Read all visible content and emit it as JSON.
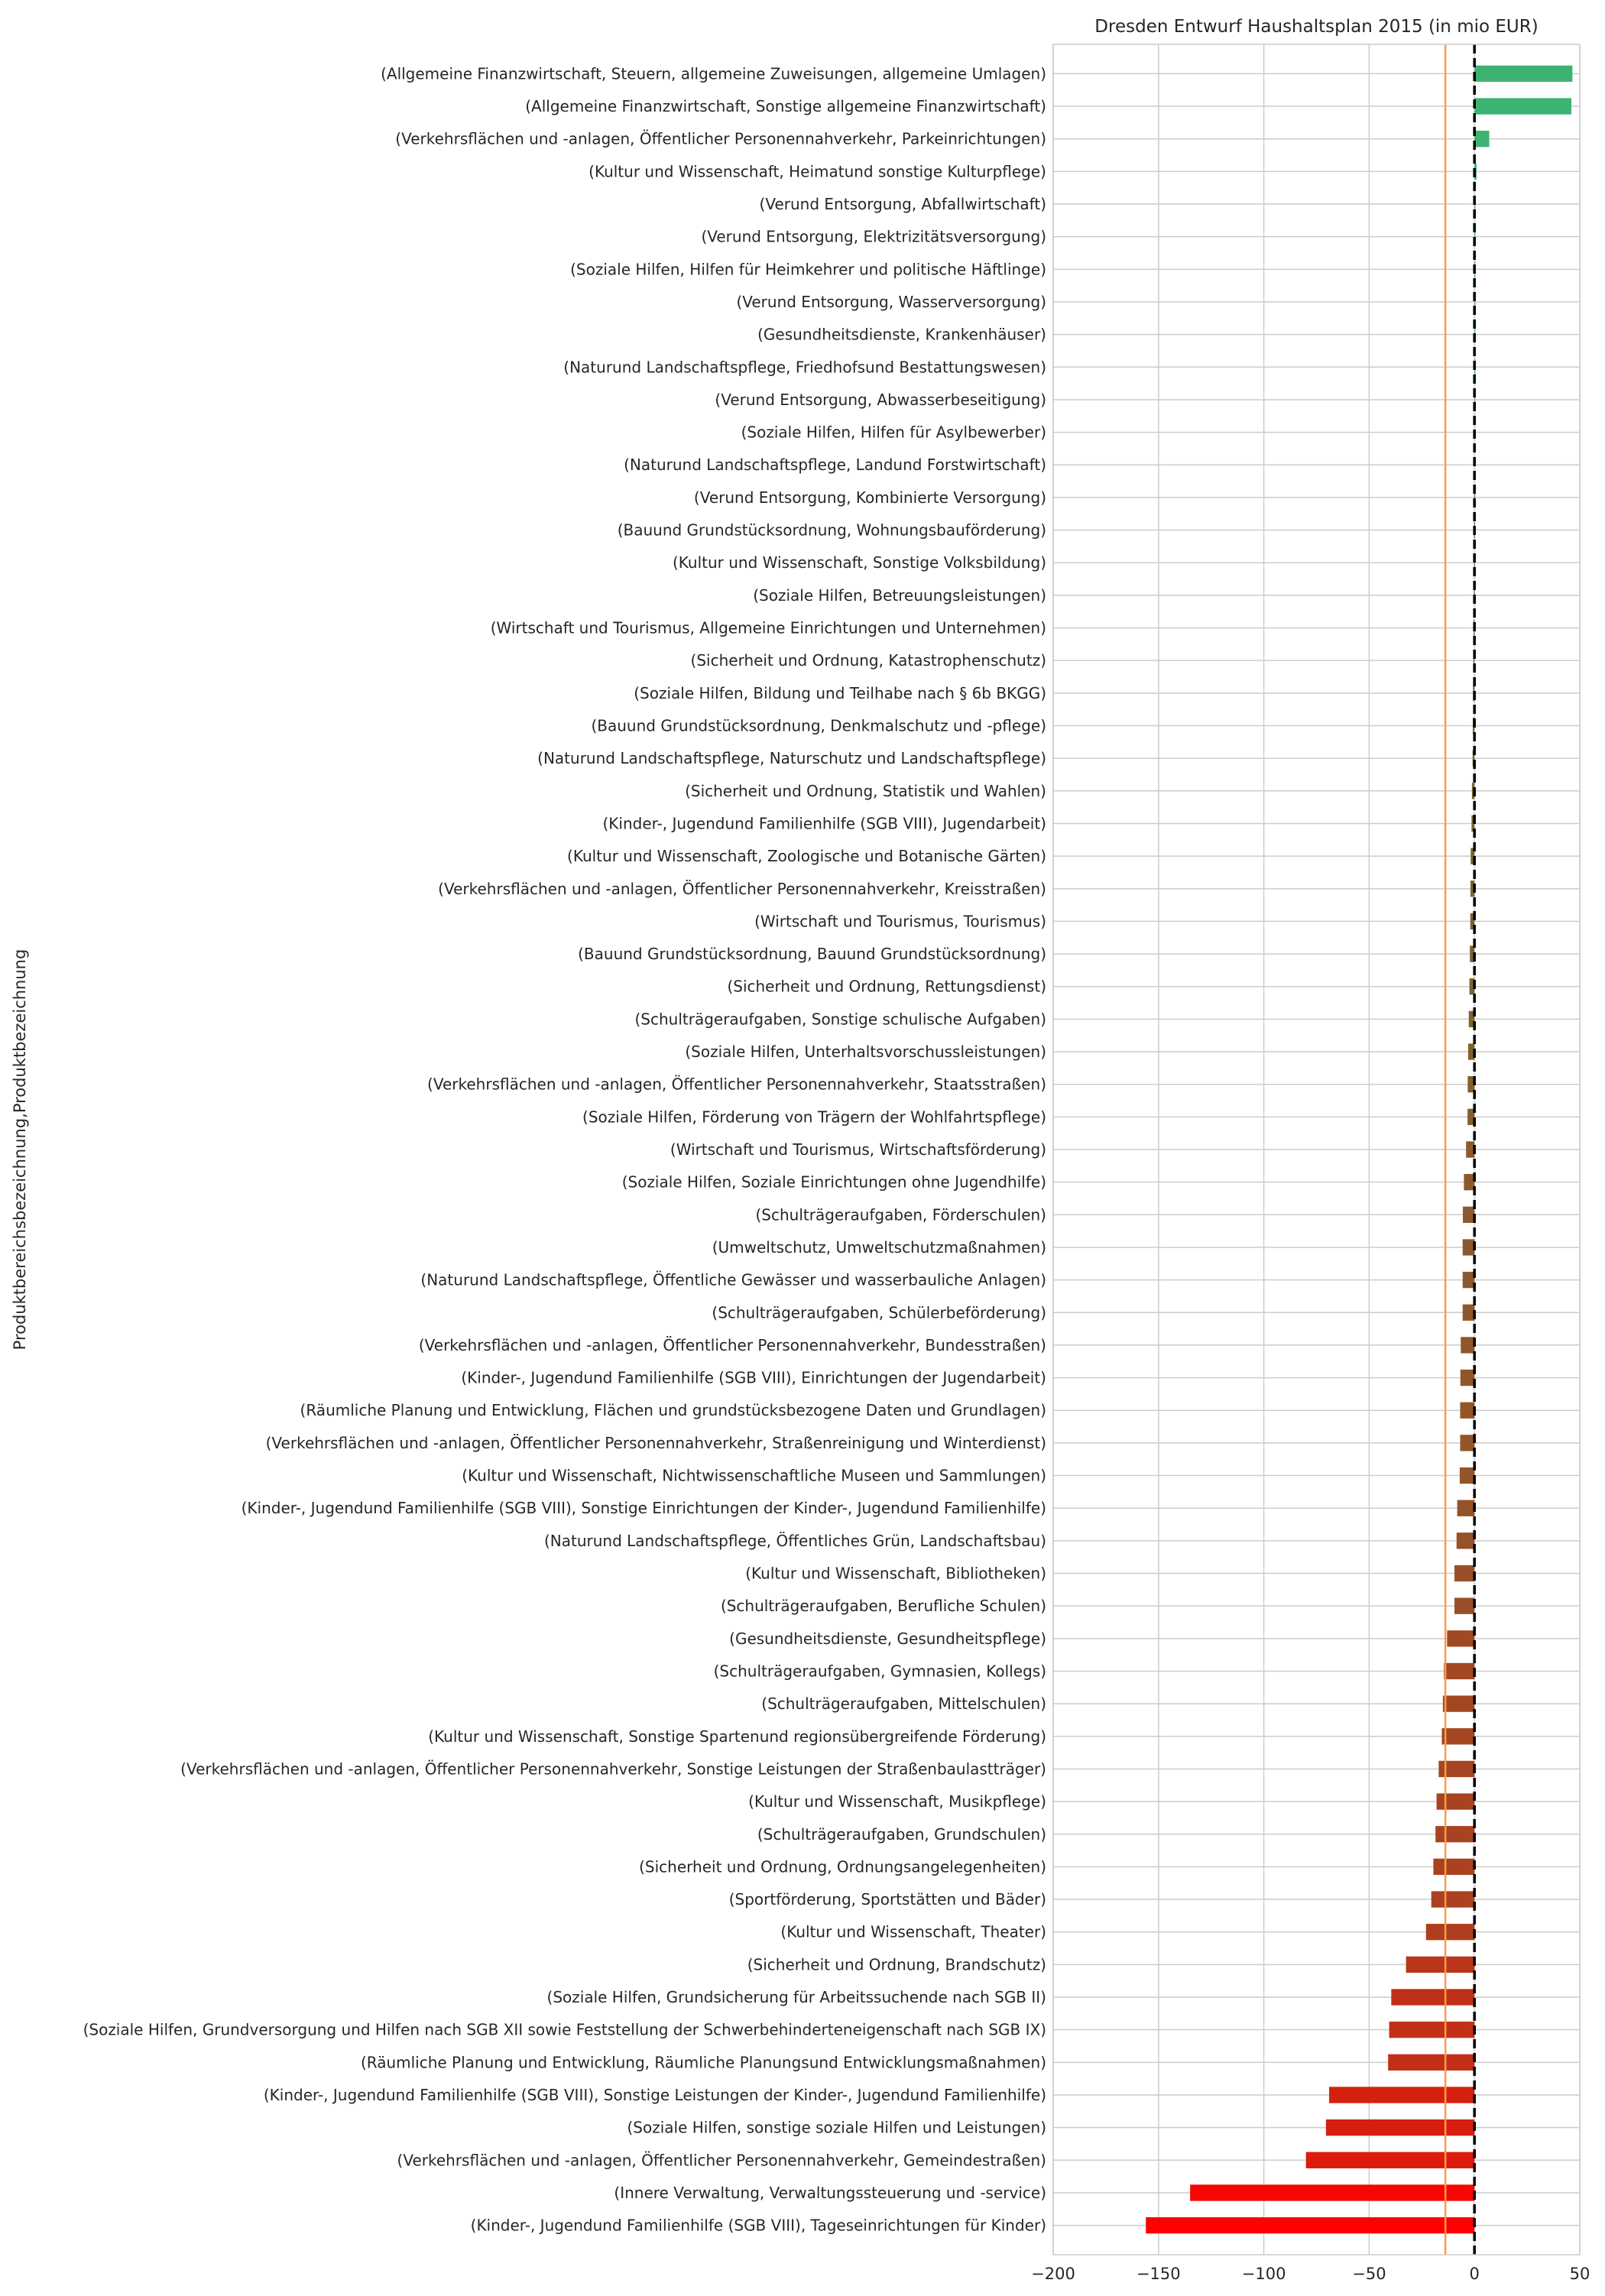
{
  "chart_data": {
    "type": "bar",
    "orientation": "horizontal",
    "title": "Dresden Entwurf Haushaltsplan 2015 (in mio EUR)",
    "xlabel": "",
    "ylabel": "Produktbereichsbezeichnung,Produktbezeichnung",
    "xlim": [
      -200,
      50
    ],
    "xticks": [
      -200,
      -150,
      -100,
      -50,
      0,
      50
    ],
    "xtick_labels": [
      "−200",
      "−150",
      "−100",
      "−50",
      "0",
      "50"
    ],
    "grid": true,
    "zero_line": {
      "x": 0,
      "style": "dashed",
      "color": "#000000"
    },
    "reference_line": {
      "x": -13.8,
      "color": "#ff9a4a"
    },
    "positive_color": "#3cb371",
    "negative_color": "#ff0000",
    "categories": [
      "(Allgemeine Finanzwirtschaft, Steuern, allgemeine Zuweisungen, allgemeine Umlagen)",
      "(Allgemeine Finanzwirtschaft, Sonstige allgemeine Finanzwirtschaft)",
      "(Verkehrsflächen und -anlagen, Öffentlicher Personennahverkehr, Parkeinrichtungen)",
      "(Kultur und Wissenschaft, Heimatund sonstige Kulturpflege)",
      "(Verund Entsorgung, Abfallwirtschaft)",
      "(Verund Entsorgung, Elektrizitätsversorgung)",
      "(Soziale Hilfen, Hilfen für Heimkehrer und politische Häftlinge)",
      "(Verund Entsorgung, Wasserversorgung)",
      "(Gesundheitsdienste, Krankenhäuser)",
      "(Naturund Landschaftspflege, Friedhofsund Bestattungswesen)",
      "(Verund Entsorgung, Abwasserbeseitigung)",
      "(Soziale Hilfen, Hilfen für Asylbewerber)",
      "(Naturund Landschaftspflege, Landund Forstwirtschaft)",
      "(Verund Entsorgung, Kombinierte Versorgung)",
      "(Bauund Grundstücksordnung, Wohnungsbauförderung)",
      "(Kultur und Wissenschaft, Sonstige Volksbildung)",
      "(Soziale Hilfen, Betreuungsleistungen)",
      "(Wirtschaft und Tourismus, Allgemeine Einrichtungen und Unternehmen)",
      "(Sicherheit und Ordnung, Katastrophenschutz)",
      "(Soziale Hilfen, Bildung und Teilhabe nach § 6b BKGG)",
      "(Bauund Grundstücksordnung, Denkmalschutz und -pflege)",
      "(Naturund Landschaftspflege, Naturschutz und Landschaftspflege)",
      "(Sicherheit und Ordnung, Statistik und Wahlen)",
      "(Kinder-, Jugendund Familienhilfe (SGB VIII), Jugendarbeit)",
      "(Kultur und Wissenschaft, Zoologische und Botanische Gärten)",
      "(Verkehrsflächen und -anlagen, Öffentlicher Personennahverkehr, Kreisstraßen)",
      "(Wirtschaft und Tourismus, Tourismus)",
      "(Bauund Grundstücksordnung, Bauund Grundstücksordnung)",
      "(Sicherheit und Ordnung, Rettungsdienst)",
      "(Schulträgeraufgaben, Sonstige schulische Aufgaben)",
      "(Soziale Hilfen, Unterhaltsvorschussleistungen)",
      "(Verkehrsflächen und -anlagen, Öffentlicher Personennahverkehr, Staatsstraßen)",
      "(Soziale Hilfen, Förderung von Trägern der Wohlfahrtspflege)",
      "(Wirtschaft und Tourismus, Wirtschaftsförderung)",
      "(Soziale Hilfen, Soziale Einrichtungen ohne Jugendhilfe)",
      "(Schulträgeraufgaben, Förderschulen)",
      "(Umweltschutz, Umweltschutzmaßnahmen)",
      "(Naturund Landschaftspflege, Öffentliche Gewässer und wasserbauliche Anlagen)",
      "(Schulträgeraufgaben, Schülerbeförderung)",
      "(Verkehrsflächen und -anlagen, Öffentlicher Personennahverkehr, Bundesstraßen)",
      "(Kinder-, Jugendund Familienhilfe (SGB VIII), Einrichtungen der Jugendarbeit)",
      "(Räumliche Planung und Entwicklung, Flächen und grundstücksbezogene Daten und Grundlagen)",
      "(Verkehrsflächen und -anlagen, Öffentlicher Personennahverkehr, Straßenreinigung und Winterdienst)",
      "(Kultur und Wissenschaft, Nichtwissenschaftliche Museen und Sammlungen)",
      "(Kinder-, Jugendund Familienhilfe (SGB VIII), Sonstige Einrichtungen der Kinder-, Jugendund Familienhilfe)",
      "(Naturund Landschaftspflege, Öffentliches Grün, Landschaftsbau)",
      "(Kultur und Wissenschaft, Bibliotheken)",
      "(Schulträgeraufgaben, Berufliche Schulen)",
      "(Gesundheitsdienste, Gesundheitspflege)",
      "(Schulträgeraufgaben, Gymnasien, Kollegs)",
      "(Schulträgeraufgaben, Mittelschulen)",
      "(Kultur und Wissenschaft, Sonstige Spartenund regionsübergreifende Förderung)",
      "(Verkehrsflächen und -anlagen, Öffentlicher Personennahverkehr, Sonstige Leistungen der Straßenbaulastträger)",
      "(Kultur und Wissenschaft, Musikpflege)",
      "(Schulträgeraufgaben, Grundschulen)",
      "(Sicherheit und Ordnung, Ordnungsangelegenheiten)",
      "(Sportförderung, Sportstätten und Bäder)",
      "(Kultur und Wissenschaft, Theater)",
      "(Sicherheit und Ordnung, Brandschutz)",
      "(Soziale Hilfen, Grundsicherung für Arbeitssuchende nach SGB II)",
      "(Soziale Hilfen, Grundversorgung und Hilfen nach SGB XII sowie Feststellung der Schwerbehinderteneigenschaft nach SGB IX)",
      "(Räumliche Planung und Entwicklung, Räumliche Planungsund Entwicklungsmaßnahmen)",
      "(Kinder-, Jugendund Familienhilfe (SGB VIII), Sonstige Leistungen der Kinder-, Jugendund Familienhilfe)",
      "(Soziale Hilfen, sonstige soziale Hilfen und Leistungen)",
      "(Verkehrsflächen und -anlagen, Öffentlicher Personennahverkehr, Gemeindestraßen)",
      "(Innere Verwaltung, Verwaltungssteuerung und -service)",
      "(Kinder-, Jugendund Familienhilfe (SGB VIII), Tageseinrichtungen für Kinder)"
    ],
    "values": [
      46.5,
      46.0,
      7.0,
      1.0,
      0.3,
      0.2,
      0.1,
      0.1,
      0.1,
      0.05,
      0.05,
      0.0,
      0.0,
      -0.1,
      -0.2,
      -0.2,
      -0.3,
      -0.4,
      -0.5,
      -0.7,
      -0.8,
      -0.9,
      -1.2,
      -1.4,
      -1.8,
      -1.9,
      -2.0,
      -2.2,
      -2.4,
      -2.7,
      -3.0,
      -3.2,
      -3.3,
      -4.0,
      -5.0,
      -5.5,
      -5.6,
      -5.6,
      -5.6,
      -6.5,
      -6.7,
      -6.8,
      -6.8,
      -7.0,
      -8.2,
      -8.5,
      -9.5,
      -9.5,
      -13.0,
      -14.5,
      -15.0,
      -15.5,
      -17.0,
      -18.0,
      -18.5,
      -19.5,
      -20.5,
      -23.0,
      -32.5,
      -39.5,
      -40.5,
      -41.0,
      -69.0,
      -70.5,
      -80.0,
      -135.0,
      -156.0
    ]
  }
}
